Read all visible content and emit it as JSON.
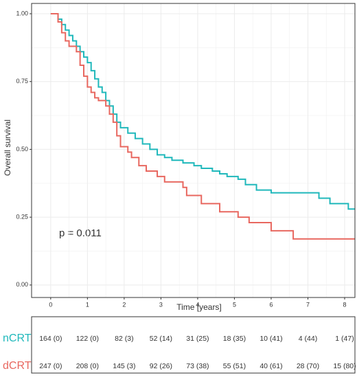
{
  "chart_data": {
    "type": "step",
    "ylabel": "Overall survival",
    "xlabel": "Time [years]",
    "annotation": "p = 0.011",
    "xlim": [
      -0.52,
      8.28
    ],
    "ylim": [
      -0.046,
      1.038
    ],
    "xticks": [
      0,
      1,
      2,
      3,
      4,
      5,
      6,
      7,
      8
    ],
    "yticks": [
      {
        "value": 0,
        "label": "0.00"
      },
      {
        "value": 0.25,
        "label": "0.25"
      },
      {
        "value": 0.5,
        "label": "0.50"
      },
      {
        "value": 0.75,
        "label": "0.75"
      },
      {
        "value": 1,
        "label": "1.00"
      }
    ],
    "grid": true,
    "series": [
      {
        "name": "nCRT",
        "color": "#1fb8bb",
        "x": [
          0,
          0.2,
          0.3,
          0.4,
          0.5,
          0.6,
          0.7,
          0.8,
          0.9,
          1.0,
          1.1,
          1.2,
          1.3,
          1.4,
          1.5,
          1.6,
          1.7,
          1.8,
          1.9,
          2.1,
          2.3,
          2.5,
          2.7,
          2.9,
          3.1,
          3.3,
          3.6,
          3.9,
          4.1,
          4.4,
          4.6,
          4.8,
          5.1,
          5.3,
          5.6,
          6.0,
          7.3,
          7.6,
          8.1,
          8.28
        ],
        "values": [
          1.0,
          0.98,
          0.96,
          0.94,
          0.92,
          0.9,
          0.88,
          0.86,
          0.84,
          0.82,
          0.79,
          0.76,
          0.73,
          0.71,
          0.68,
          0.66,
          0.63,
          0.6,
          0.58,
          0.56,
          0.54,
          0.52,
          0.5,
          0.48,
          0.47,
          0.46,
          0.45,
          0.44,
          0.43,
          0.42,
          0.41,
          0.4,
          0.39,
          0.37,
          0.35,
          0.34,
          0.32,
          0.3,
          0.28,
          0.28
        ],
        "at_risk": [
          "164 (0)",
          "122 (0)",
          "82 (3)",
          "52 (14)",
          "31 (25)",
          "18 (35)",
          "10 (41)",
          "4 (44)",
          "1 (47)"
        ]
      },
      {
        "name": "dCRT",
        "color": "#e8675f",
        "x": [
          0,
          0.2,
          0.3,
          0.4,
          0.5,
          0.7,
          0.8,
          0.9,
          1.0,
          1.1,
          1.2,
          1.3,
          1.5,
          1.6,
          1.7,
          1.8,
          1.9,
          2.1,
          2.2,
          2.4,
          2.6,
          2.9,
          3.1,
          3.6,
          3.7,
          4.1,
          4.6,
          5.1,
          5.4,
          6.0,
          6.6,
          8.28
        ],
        "values": [
          1.0,
          0.97,
          0.93,
          0.9,
          0.88,
          0.86,
          0.81,
          0.77,
          0.73,
          0.71,
          0.69,
          0.68,
          0.66,
          0.63,
          0.6,
          0.55,
          0.51,
          0.49,
          0.47,
          0.44,
          0.42,
          0.4,
          0.38,
          0.36,
          0.33,
          0.3,
          0.27,
          0.25,
          0.23,
          0.2,
          0.17,
          0.17
        ],
        "at_risk": [
          "247 (0)",
          "208 (0)",
          "145 (3)",
          "92 (26)",
          "73 (38)",
          "55 (51)",
          "40 (61)",
          "28 (70)",
          "15 (80)"
        ]
      }
    ]
  }
}
